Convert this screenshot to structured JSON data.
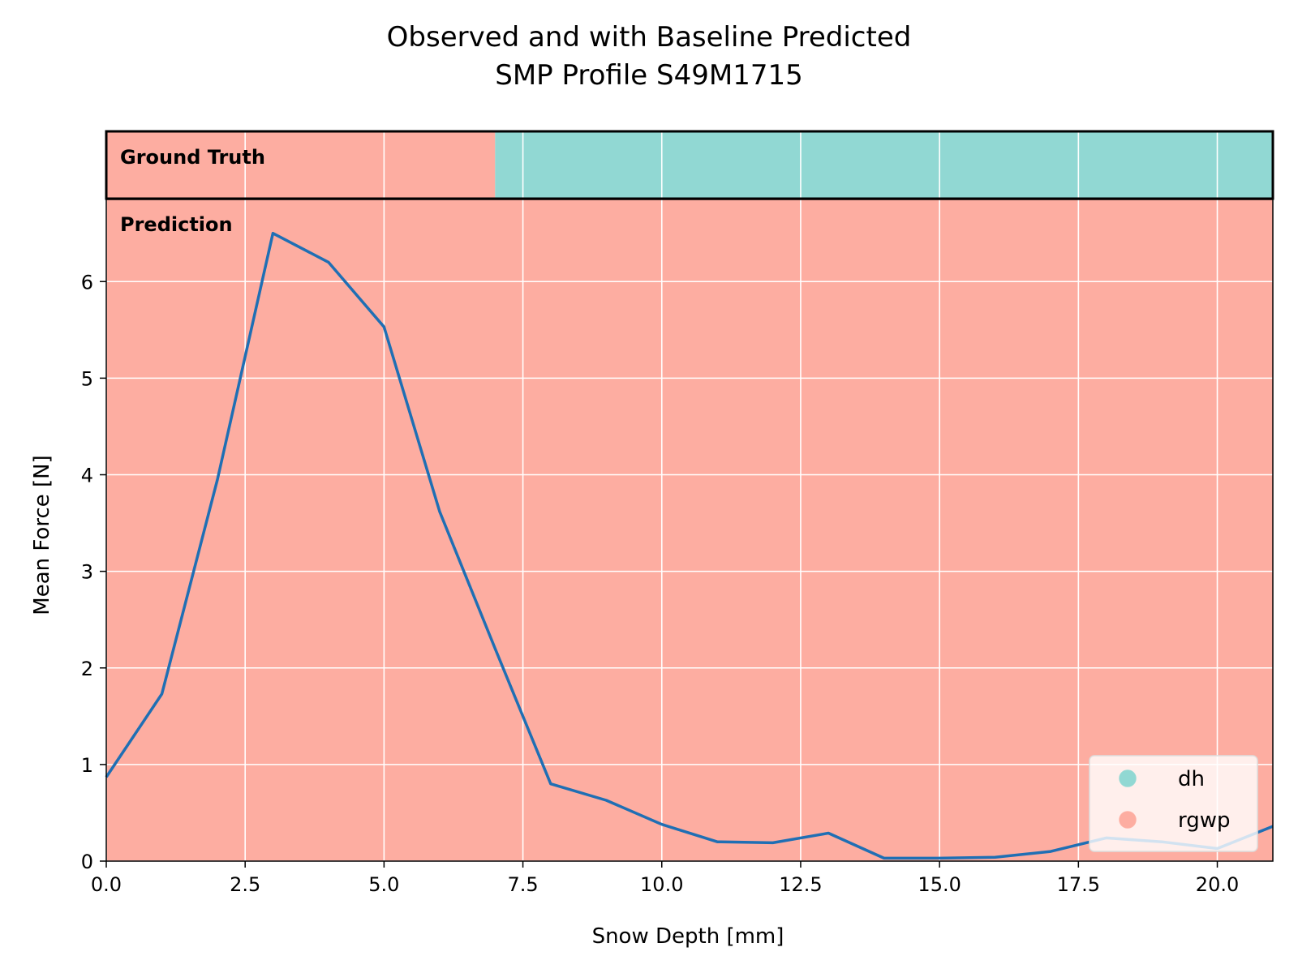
{
  "chart_data": {
    "type": "line",
    "title": "Observed and with Baseline Predicted",
    "subtitle": "SMP Profile S49M1715",
    "xlabel": "Snow Depth [mm]",
    "ylabel": "Mean Force [N]",
    "xlim": [
      0,
      21
    ],
    "ylim": [
      0,
      6.85
    ],
    "xticks": [
      "0.0",
      "2.5",
      "5.0",
      "7.5",
      "10.0",
      "12.5",
      "15.0",
      "17.5",
      "20.0"
    ],
    "yticks": [
      "0",
      "1",
      "2",
      "3",
      "4",
      "5",
      "6"
    ],
    "grid": true,
    "legend_position": "lower right",
    "series": [
      {
        "x": [
          0,
          1,
          2,
          3,
          4,
          5,
          6,
          7,
          8,
          9,
          10,
          11,
          12,
          13,
          14,
          15,
          16,
          17,
          18,
          19,
          20,
          21
        ],
        "y": [
          0.87,
          1.73,
          3.95,
          6.5,
          6.2,
          5.53,
          3.62,
          2.2,
          0.8,
          0.63,
          0.38,
          0.2,
          0.19,
          0.29,
          0.03,
          0.03,
          0.04,
          0.1,
          0.24,
          0.2,
          0.13,
          0.36
        ],
        "color": "#1f6fb4"
      }
    ],
    "bands": {
      "ground_truth_label": "Ground Truth",
      "prediction_label": "Prediction",
      "ground_truth_segments": [
        {
          "class": "rgwp",
          "start": 0,
          "end": 7
        },
        {
          "class": "dh",
          "start": 7,
          "end": 21
        }
      ],
      "prediction_segments": [
        {
          "class": "rgwp",
          "start": 0,
          "end": 21
        }
      ]
    },
    "legend": [
      {
        "label": "dh",
        "color": "#91d8d3"
      },
      {
        "label": "rgwp",
        "color": "#fdada1"
      }
    ],
    "class_colors": {
      "dh": "#91d8d3",
      "rgwp": "#fdada1"
    }
  }
}
